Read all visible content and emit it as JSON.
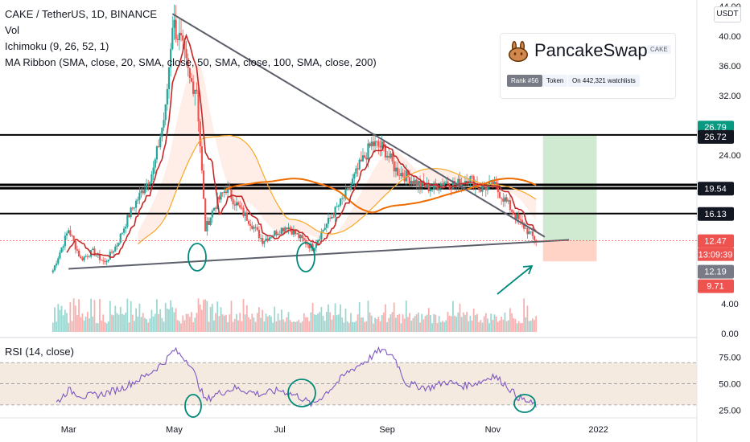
{
  "legend": {
    "symbol": "CAKE / TetherUS, 1D, BINANCE",
    "vol": "Vol",
    "ichimoku": "Ichimoku (9, 26, 52, 1)",
    "ribbon": "MA Ribbon (SMA, close, 20, SMA, close, 50, SMA, close, 100, SMA, close, 200)"
  },
  "rsi_label": "RSI (14, close)",
  "currency_button": "USDT",
  "card": {
    "name": "PancakeSwap",
    "ticker": "CAKE",
    "rank": "Rank #56",
    "type": "Token",
    "watchlists": "On 442,321 watchlists"
  },
  "colors": {
    "up": "#26a69a",
    "down": "#ef5350",
    "ribbon_fast": "#c62828",
    "ribbon_mid": "#f9a825",
    "ribbon_slow": "#ef6c00",
    "rsi": "#7e57c2",
    "annotation": "#00897b"
  },
  "chart_data": [
    {
      "type": "candlestick",
      "x_axis": {
        "labels": [
          "Mar",
          "May",
          "Jul",
          "Sep",
          "Nov",
          "2022"
        ],
        "dates": [
          "2021-03-01",
          "2021-05-01",
          "2021-07-01",
          "2021-09-01",
          "2021-11-01",
          "2022-01-01"
        ]
      },
      "y_axis": {
        "ticks": [
          0.0,
          4.0,
          8.0,
          12.0,
          16.0,
          20.0,
          24.0,
          28.0,
          32.0,
          36.0,
          40.0,
          44.0
        ],
        "tick_labels": [
          "0.00",
          "4.00",
          "",
          "",
          "",
          "",
          "24.00",
          "",
          "32.00",
          "36.00",
          "40.00",
          "44.00"
        ],
        "range": [
          0,
          44
        ]
      },
      "price_path": [
        [
          "2021-02-20",
          8.5
        ],
        [
          "2021-03-01",
          14.0
        ],
        [
          "2021-03-08",
          10.0
        ],
        [
          "2021-03-15",
          11.0
        ],
        [
          "2021-03-22",
          9.5
        ],
        [
          "2021-03-29",
          12.0
        ],
        [
          "2021-04-05",
          16.0
        ],
        [
          "2021-04-12",
          19.0
        ],
        [
          "2021-04-19",
          22.0
        ],
        [
          "2021-04-26",
          30.0
        ],
        [
          "2021-04-30",
          42.0
        ],
        [
          "2021-05-05",
          39.0
        ],
        [
          "2021-05-10",
          34.0
        ],
        [
          "2021-05-14",
          33.0
        ],
        [
          "2021-05-19",
          14.0
        ],
        [
          "2021-05-24",
          17.0
        ],
        [
          "2021-05-31",
          19.5
        ],
        [
          "2021-06-07",
          17.0
        ],
        [
          "2021-06-14",
          15.0
        ],
        [
          "2021-06-21",
          12.5
        ],
        [
          "2021-06-28",
          13.5
        ],
        [
          "2021-07-05",
          14.5
        ],
        [
          "2021-07-12",
          13.0
        ],
        [
          "2021-07-20",
          11.5
        ],
        [
          "2021-07-26",
          14.0
        ],
        [
          "2021-08-02",
          16.5
        ],
        [
          "2021-08-09",
          19.0
        ],
        [
          "2021-08-16",
          22.5
        ],
        [
          "2021-08-23",
          25.5
        ],
        [
          "2021-08-30",
          25.0
        ],
        [
          "2021-09-06",
          22.0
        ],
        [
          "2021-09-13",
          21.0
        ],
        [
          "2021-09-20",
          20.0
        ],
        [
          "2021-09-27",
          19.5
        ],
        [
          "2021-10-04",
          20.5
        ],
        [
          "2021-10-11",
          20.0
        ],
        [
          "2021-10-18",
          21.0
        ],
        [
          "2021-10-25",
          19.5
        ],
        [
          "2021-11-01",
          20.0
        ],
        [
          "2021-11-08",
          18.0
        ],
        [
          "2021-11-15",
          15.5
        ],
        [
          "2021-11-22",
          13.5
        ],
        [
          "2021-11-26",
          12.47
        ]
      ],
      "price_labels": [
        {
          "value": 26.79,
          "text": "26.79",
          "color": "#089981"
        },
        {
          "value": 26.72,
          "text": "26.72",
          "color": "#131722"
        },
        {
          "value": 19.54,
          "text": "19.54",
          "color": "#131722"
        },
        {
          "value": 16.13,
          "text": "16.13",
          "color": "#131722"
        },
        {
          "value": 12.47,
          "text": "12.47",
          "color": "#ef5350"
        },
        {
          "value": 12.19,
          "text": "12.19",
          "color": "#787b86"
        },
        {
          "value": 9.71,
          "text": "9.71",
          "color": "#ef5350"
        }
      ],
      "countdown": "13:09:39",
      "horizontal_levels": [
        26.72,
        20.0,
        19.54,
        16.13
      ],
      "trendlines": [
        {
          "from": [
            "2021-04-30",
            43.0
          ],
          "to": [
            "2021-12-01",
            13.0
          ]
        },
        {
          "from": [
            "2021-03-01",
            8.7
          ],
          "to": [
            "2021-12-15",
            12.6
          ]
        }
      ],
      "position_tool": {
        "start": "2021-11-30",
        "end": "2021-12-31",
        "entry": 12.47,
        "target": 26.79,
        "stop": 9.71
      }
    },
    {
      "type": "line",
      "title": "RSI (14, close)",
      "y_axis": {
        "ticks": [
          25,
          50,
          75
        ],
        "tick_labels": [
          "25.00",
          "50.00",
          "75.00"
        ],
        "range": [
          20,
          90
        ],
        "band": [
          30,
          70
        ]
      },
      "values": [
        [
          "2021-02-22",
          32
        ],
        [
          "2021-03-01",
          44
        ],
        [
          "2021-03-10",
          38
        ],
        [
          "2021-03-20",
          40
        ],
        [
          "2021-04-01",
          46
        ],
        [
          "2021-04-15",
          58
        ],
        [
          "2021-04-25",
          70
        ],
        [
          "2021-05-01",
          82
        ],
        [
          "2021-05-10",
          70
        ],
        [
          "2021-05-19",
          34
        ],
        [
          "2021-05-25",
          40
        ],
        [
          "2021-06-05",
          46
        ],
        [
          "2021-06-20",
          40
        ],
        [
          "2021-07-01",
          44
        ],
        [
          "2021-07-12",
          38
        ],
        [
          "2021-07-20",
          30
        ],
        [
          "2021-08-01",
          48
        ],
        [
          "2021-08-10",
          62
        ],
        [
          "2021-08-20",
          72
        ],
        [
          "2021-08-28",
          82
        ],
        [
          "2021-09-05",
          76
        ],
        [
          "2021-09-12",
          50
        ],
        [
          "2021-09-25",
          46
        ],
        [
          "2021-10-05",
          52
        ],
        [
          "2021-10-15",
          48
        ],
        [
          "2021-10-25",
          52
        ],
        [
          "2021-11-01",
          58
        ],
        [
          "2021-11-08",
          50
        ],
        [
          "2021-11-15",
          38
        ],
        [
          "2021-11-22",
          32
        ],
        [
          "2021-11-26",
          30
        ]
      ]
    }
  ]
}
